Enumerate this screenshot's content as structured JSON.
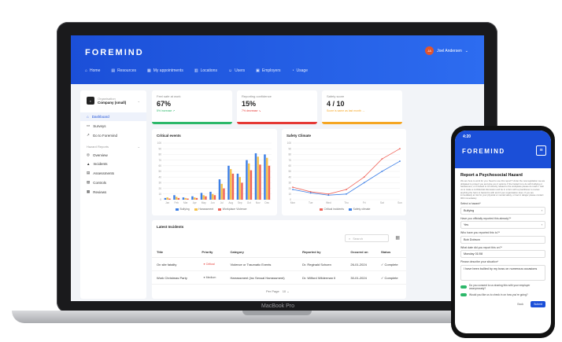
{
  "brand": "FOREMIND",
  "user": {
    "initials": "JA",
    "name": "Joel Andersen"
  },
  "nav": [
    "Home",
    "Resources",
    "My appointments",
    "Locations",
    "Users",
    "Employers",
    "Usage"
  ],
  "sidebar": {
    "org_label": "Organisation",
    "org_name": "Company (small)",
    "items": [
      "Dashboard",
      "Surveys",
      "Go to Foremind"
    ],
    "section": "Hazard Reports",
    "section_items": [
      "Overview",
      "Incidents",
      "Assessments",
      "Controls",
      "Reviews"
    ]
  },
  "kpis": [
    {
      "label": "Feel safe at work",
      "value": "67%",
      "sub": "5% increase ↗",
      "color": "#2db86a"
    },
    {
      "label": "Reporting confidence",
      "value": "15%",
      "sub": "7% decrease ↘",
      "color": "#e53935"
    },
    {
      "label": "Safety score",
      "value": "4 / 10",
      "sub": "Score is same as last month →",
      "color": "#f5a623"
    }
  ],
  "critical_events": {
    "title": "Critical events",
    "legend": [
      "Bullying",
      "Harassment",
      "Workplace Violence"
    ],
    "colors": [
      "#3d7fe6",
      "#f5c24c",
      "#f0645a"
    ]
  },
  "safety_climate": {
    "title": "Safety Climate",
    "legend": [
      "Critical incidents",
      "Safety climate"
    ],
    "colors": [
      "#f0645a",
      "#3d7fe6"
    ]
  },
  "chart_data": [
    {
      "type": "bar",
      "title": "Critical events",
      "categories": [
        "Jan",
        "Feb",
        "Mar",
        "Apr",
        "May",
        "Jun",
        "Jul",
        "Aug",
        "Sep",
        "Oct",
        "Nov",
        "Dec"
      ],
      "ylim": [
        0,
        100
      ],
      "yticks": [
        "0",
        "10",
        "20",
        "30",
        "40",
        "50",
        "60",
        "70",
        "80",
        "90",
        "100"
      ],
      "series": [
        {
          "name": "Bullying",
          "values": [
            3,
            8,
            4,
            6,
            12,
            14,
            36,
            60,
            46,
            70,
            82,
            80
          ]
        },
        {
          "name": "Harassment",
          "values": [
            4,
            5,
            3,
            4,
            8,
            10,
            28,
            54,
            40,
            64,
            76,
            74
          ]
        },
        {
          "name": "Workplace Violence",
          "values": [
            2,
            3,
            2,
            3,
            6,
            8,
            20,
            46,
            30,
            52,
            62,
            60
          ]
        }
      ]
    },
    {
      "type": "line",
      "title": "Safety Climate",
      "categories": [
        "Mon",
        "Tue",
        "Wed",
        "Thu",
        "Fri",
        "Sat",
        "Sun"
      ],
      "ylim": [
        0,
        100
      ],
      "yticks": [
        "0",
        "10",
        "20",
        "30",
        "40",
        "50",
        "60",
        "70",
        "80",
        "90",
        "100"
      ],
      "series": [
        {
          "name": "Critical incidents",
          "values": [
            22,
            14,
            10,
            18,
            40,
            72,
            90
          ]
        },
        {
          "name": "Safety climate",
          "values": [
            18,
            12,
            8,
            10,
            30,
            50,
            68
          ]
        }
      ]
    }
  ],
  "incidents": {
    "title": "Latest Incidents",
    "search_placeholder": "Search",
    "columns": [
      "Title",
      "Priority",
      "Category",
      "Reported by",
      "Occured on",
      "Status"
    ],
    "rows": [
      {
        "title": "On site fatality",
        "priority": "Critical",
        "priority_color": "#e53935",
        "category": "Violence or Traumatic Events",
        "reported_by": "Dr. Reginald Schoen",
        "date": "26-01-2024",
        "status": "Complete"
      },
      {
        "title": "Work Christmas Party",
        "priority": "Medium",
        "priority_color": "#555555",
        "category": "Harrassment (inc Sexual Harrassment)",
        "reported_by": "Dr. Wilford Wilderman II",
        "date": "30-01-2024",
        "status": "Complete"
      }
    ],
    "per_page_label": "Per Page",
    "per_page": "10"
  },
  "laptop_label": "MacBook Pro",
  "phone": {
    "time": "4:20",
    "title": "Report a Psychosocial Hazard",
    "intro": "We are here to work for you. Need to use this report? Under the new legislation we are obligated to protect you and give you 2 options. If the hazard is to do with bullying or harassment, or if hazard is not directly related to the workplace please do read it. Call us to make a confidential discussion and be in a form with a practitioner to review anything the harm is hazard is with and if your organisation does. If you are immediately at risk for your physical or mental safety, or feel in danger please contact 000 immediately.",
    "fields": [
      {
        "label": "Select a hazard*",
        "value": "Bullying",
        "arrow": "›"
      },
      {
        "label": "Have you officially reported this already?*",
        "value": "Yes",
        "arrow": "›"
      },
      {
        "label": "Who have you reported this to?*",
        "value": "Bob Dobson",
        "arrow": ""
      },
      {
        "label": "What date did you report this on?*",
        "value": "Monday 01/08",
        "arrow": ""
      },
      {
        "label": "Please describe your situation*",
        "value": "I have been bullied by my boss on numerous occasions",
        "arrow": ""
      }
    ],
    "toggles": [
      "Do you consent to us sharing this with your employer anonymously?",
      "Would you like us to check in on how you're going?"
    ],
    "back": "Back",
    "submit": "Submit"
  }
}
